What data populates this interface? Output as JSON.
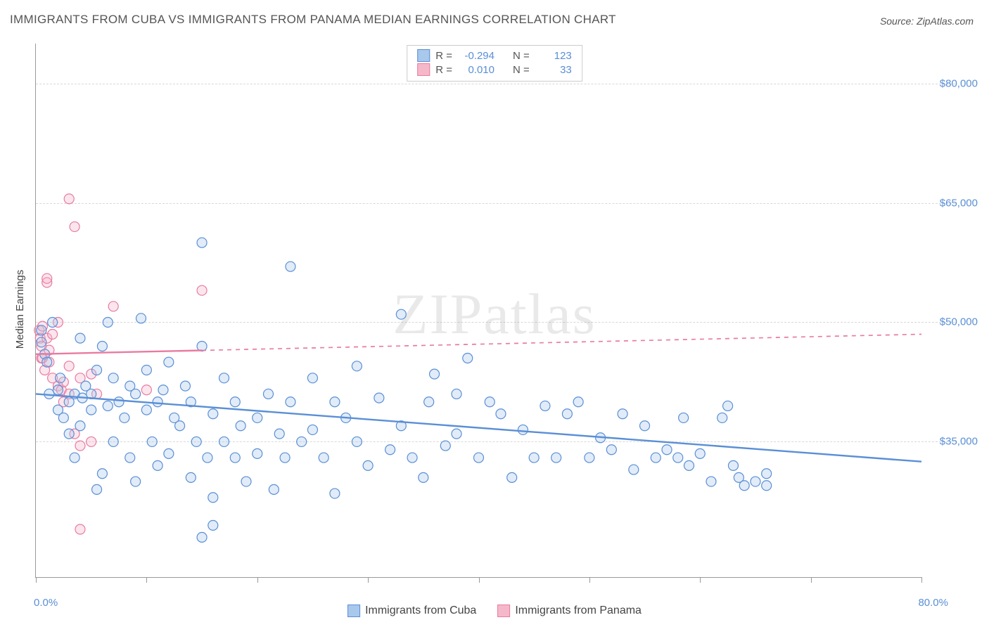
{
  "title": "IMMIGRANTS FROM CUBA VS IMMIGRANTS FROM PANAMA MEDIAN EARNINGS CORRELATION CHART",
  "source": "Source: ZipAtlas.com",
  "y_axis_title": "Median Earnings",
  "watermark": {
    "bold": "ZIP",
    "light": "atlas"
  },
  "chart": {
    "type": "scatter",
    "background_color": "#ffffff",
    "grid_color": "#d8d8d8",
    "xlim": [
      0,
      80
    ],
    "ylim": [
      18000,
      85000
    ],
    "x_tick_step": 10,
    "x_start_label": "0.0%",
    "x_end_label": "80.0%",
    "y_ticks": [
      35000,
      50000,
      65000,
      80000
    ],
    "y_tick_labels": [
      "$35,000",
      "$50,000",
      "$65,000",
      "$80,000"
    ],
    "marker_radius": 7,
    "marker_fill_opacity": 0.35,
    "marker_stroke_width": 1.2,
    "trend_line_width": 2.4,
    "series": [
      {
        "name": "Immigrants from Cuba",
        "color_fill": "#a8c8ec",
        "color_stroke": "#5a8fd6",
        "R": "-0.294",
        "N": "123",
        "trend": {
          "x1": 0,
          "y1": 41000,
          "x2": 80,
          "y2": 32500,
          "solid_until_x": 80
        },
        "points": [
          [
            0.5,
            49000
          ],
          [
            0.5,
            47500
          ],
          [
            0.8,
            46000
          ],
          [
            1,
            45000
          ],
          [
            1.2,
            41000
          ],
          [
            1.5,
            50000
          ],
          [
            2,
            39000
          ],
          [
            2,
            41500
          ],
          [
            2.2,
            43000
          ],
          [
            2.5,
            38000
          ],
          [
            3,
            40000
          ],
          [
            3,
            36000
          ],
          [
            3.5,
            41000
          ],
          [
            3.5,
            33000
          ],
          [
            4,
            48000
          ],
          [
            4,
            37000
          ],
          [
            4.2,
            40500
          ],
          [
            4.5,
            42000
          ],
          [
            5,
            39000
          ],
          [
            5,
            41000
          ],
          [
            5.5,
            44000
          ],
          [
            5.5,
            29000
          ],
          [
            6,
            47000
          ],
          [
            6,
            31000
          ],
          [
            6.5,
            50000
          ],
          [
            6.5,
            39500
          ],
          [
            7,
            43000
          ],
          [
            7,
            35000
          ],
          [
            7.5,
            40000
          ],
          [
            8,
            38000
          ],
          [
            8.5,
            33000
          ],
          [
            8.5,
            42000
          ],
          [
            9,
            41000
          ],
          [
            9,
            30000
          ],
          [
            9.5,
            50500
          ],
          [
            10,
            39000
          ],
          [
            10,
            44000
          ],
          [
            10.5,
            35000
          ],
          [
            11,
            40000
          ],
          [
            11,
            32000
          ],
          [
            11.5,
            41500
          ],
          [
            12,
            33500
          ],
          [
            12,
            45000
          ],
          [
            12.5,
            38000
          ],
          [
            13,
            37000
          ],
          [
            13.5,
            42000
          ],
          [
            14,
            30500
          ],
          [
            14,
            40000
          ],
          [
            14.5,
            35000
          ],
          [
            15,
            47000
          ],
          [
            15,
            23000
          ],
          [
            15,
            60000
          ],
          [
            15.5,
            33000
          ],
          [
            16,
            38500
          ],
          [
            16,
            28000
          ],
          [
            16,
            24500
          ],
          [
            17,
            43000
          ],
          [
            17,
            35000
          ],
          [
            18,
            33000
          ],
          [
            18,
            40000
          ],
          [
            18.5,
            37000
          ],
          [
            19,
            30000
          ],
          [
            20,
            38000
          ],
          [
            20,
            33500
          ],
          [
            21,
            41000
          ],
          [
            21.5,
            29000
          ],
          [
            22,
            36000
          ],
          [
            22.5,
            33000
          ],
          [
            23,
            40000
          ],
          [
            23,
            57000
          ],
          [
            24,
            35000
          ],
          [
            25,
            36500
          ],
          [
            25,
            43000
          ],
          [
            26,
            33000
          ],
          [
            27,
            40000
          ],
          [
            27,
            28500
          ],
          [
            28,
            38000
          ],
          [
            29,
            35000
          ],
          [
            29,
            44500
          ],
          [
            30,
            32000
          ],
          [
            31,
            40500
          ],
          [
            32,
            34000
          ],
          [
            33,
            51000
          ],
          [
            33,
            37000
          ],
          [
            34,
            33000
          ],
          [
            35,
            30500
          ],
          [
            35.5,
            40000
          ],
          [
            36,
            43500
          ],
          [
            37,
            34500
          ],
          [
            38,
            41000
          ],
          [
            38,
            36000
          ],
          [
            39,
            45500
          ],
          [
            40,
            33000
          ],
          [
            41,
            40000
          ],
          [
            42,
            38500
          ],
          [
            43,
            30500
          ],
          [
            44,
            36500
          ],
          [
            45,
            33000
          ],
          [
            46,
            39500
          ],
          [
            47,
            33000
          ],
          [
            48,
            38500
          ],
          [
            49,
            40000
          ],
          [
            50,
            33000
          ],
          [
            51,
            35500
          ],
          [
            52,
            34000
          ],
          [
            53,
            38500
          ],
          [
            54,
            31500
          ],
          [
            55,
            37000
          ],
          [
            56,
            33000
          ],
          [
            57,
            34000
          ],
          [
            58,
            33000
          ],
          [
            58.5,
            38000
          ],
          [
            59,
            32000
          ],
          [
            60,
            33500
          ],
          [
            61,
            30000
          ],
          [
            62,
            38000
          ],
          [
            62.5,
            39500
          ],
          [
            63,
            32000
          ],
          [
            63.5,
            30500
          ],
          [
            64,
            29500
          ],
          [
            65,
            30000
          ],
          [
            66,
            31000
          ],
          [
            66,
            29500
          ]
        ]
      },
      {
        "name": "Immigrants from Panama",
        "color_fill": "#f5b8ca",
        "color_stroke": "#e97ba0",
        "R": "0.010",
        "N": "33",
        "trend": {
          "x1": 0,
          "y1": 46000,
          "x2": 80,
          "y2": 48500,
          "solid_until_x": 15
        },
        "points": [
          [
            0.3,
            49000
          ],
          [
            0.4,
            48000
          ],
          [
            0.5,
            47000
          ],
          [
            0.5,
            45500
          ],
          [
            0.6,
            49500
          ],
          [
            0.6,
            45500
          ],
          [
            0.8,
            44000
          ],
          [
            1,
            55000
          ],
          [
            1,
            55500
          ],
          [
            1,
            48000
          ],
          [
            1.2,
            46500
          ],
          [
            1.2,
            45000
          ],
          [
            1.5,
            43000
          ],
          [
            1.5,
            48500
          ],
          [
            2,
            42000
          ],
          [
            2,
            50000
          ],
          [
            2.3,
            41500
          ],
          [
            2.5,
            42500
          ],
          [
            2.5,
            40000
          ],
          [
            3,
            65500
          ],
          [
            3,
            44500
          ],
          [
            3,
            41000
          ],
          [
            3.5,
            36000
          ],
          [
            3.5,
            62000
          ],
          [
            4,
            34500
          ],
          [
            4,
            43000
          ],
          [
            4,
            24000
          ],
          [
            5,
            43500
          ],
          [
            5,
            35000
          ],
          [
            5.5,
            41000
          ],
          [
            7,
            52000
          ],
          [
            10,
            41500
          ],
          [
            15,
            54000
          ]
        ]
      }
    ]
  },
  "legend": {
    "correlation_labels": {
      "R": "R =",
      "N": "N ="
    }
  }
}
